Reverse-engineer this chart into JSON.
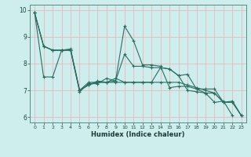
{
  "xlabel": "Humidex (Indice chaleur)",
  "ylabel": "",
  "bg_color": "#ceeeed",
  "line_color": "#2a6e62",
  "grid_color": "#e8b8bc",
  "xlim": [
    -0.5,
    23.5
  ],
  "ylim": [
    5.8,
    10.2
  ],
  "yticks": [
    6,
    7,
    8,
    9,
    10
  ],
  "xticks": [
    0,
    1,
    2,
    3,
    4,
    5,
    6,
    7,
    8,
    9,
    10,
    11,
    12,
    13,
    14,
    15,
    16,
    17,
    18,
    19,
    20,
    21,
    22,
    23
  ],
  "line1_x": [
    0,
    1,
    2,
    3,
    4,
    5,
    6,
    7,
    8,
    9,
    10,
    11,
    12,
    13,
    14,
    15,
    16,
    17,
    18,
    19,
    20,
    21,
    22,
    23
  ],
  "line1_y": [
    9.9,
    8.65,
    8.5,
    8.5,
    8.5,
    6.95,
    7.25,
    7.25,
    7.45,
    7.35,
    9.4,
    8.85,
    7.95,
    7.95,
    7.9,
    7.1,
    7.15,
    7.15,
    7.05,
    6.9,
    6.55,
    6.6,
    6.05,
    null
  ],
  "line2_x": [
    0,
    1,
    2,
    3,
    4,
    5,
    6,
    7,
    8,
    9,
    10,
    11,
    12,
    13,
    14,
    15,
    16,
    17,
    18,
    19,
    20,
    21,
    22,
    23
  ],
  "line2_y": [
    9.9,
    8.65,
    8.5,
    8.5,
    8.5,
    7.0,
    7.2,
    7.35,
    7.3,
    7.35,
    8.35,
    7.9,
    7.9,
    7.85,
    7.85,
    7.8,
    7.55,
    7.0,
    6.95,
    6.9,
    6.9,
    6.55,
    6.55,
    6.05
  ],
  "line3_x": [
    0,
    1,
    2,
    3,
    4,
    5,
    6,
    7,
    8,
    9,
    10,
    11,
    12,
    13,
    14,
    15,
    16,
    17,
    18,
    19,
    20,
    21,
    22,
    23
  ],
  "line3_y": [
    9.9,
    7.5,
    7.5,
    8.5,
    8.5,
    7.0,
    7.3,
    7.3,
    7.3,
    7.3,
    7.3,
    7.3,
    7.3,
    7.3,
    7.3,
    7.3,
    7.3,
    7.2,
    7.1,
    7.0,
    6.9,
    6.55,
    6.55,
    6.05
  ],
  "line4_x": [
    0,
    1,
    2,
    3,
    4,
    5,
    6,
    7,
    8,
    9,
    10,
    11,
    12,
    13,
    14,
    15,
    16,
    17,
    18,
    19,
    20,
    21,
    22,
    23
  ],
  "line4_y": [
    9.9,
    8.65,
    8.5,
    8.5,
    8.55,
    7.0,
    7.2,
    7.3,
    7.3,
    7.45,
    7.3,
    7.3,
    7.3,
    7.3,
    7.85,
    7.8,
    7.55,
    7.6,
    7.05,
    7.05,
    7.05,
    6.55,
    6.6,
    6.05
  ]
}
